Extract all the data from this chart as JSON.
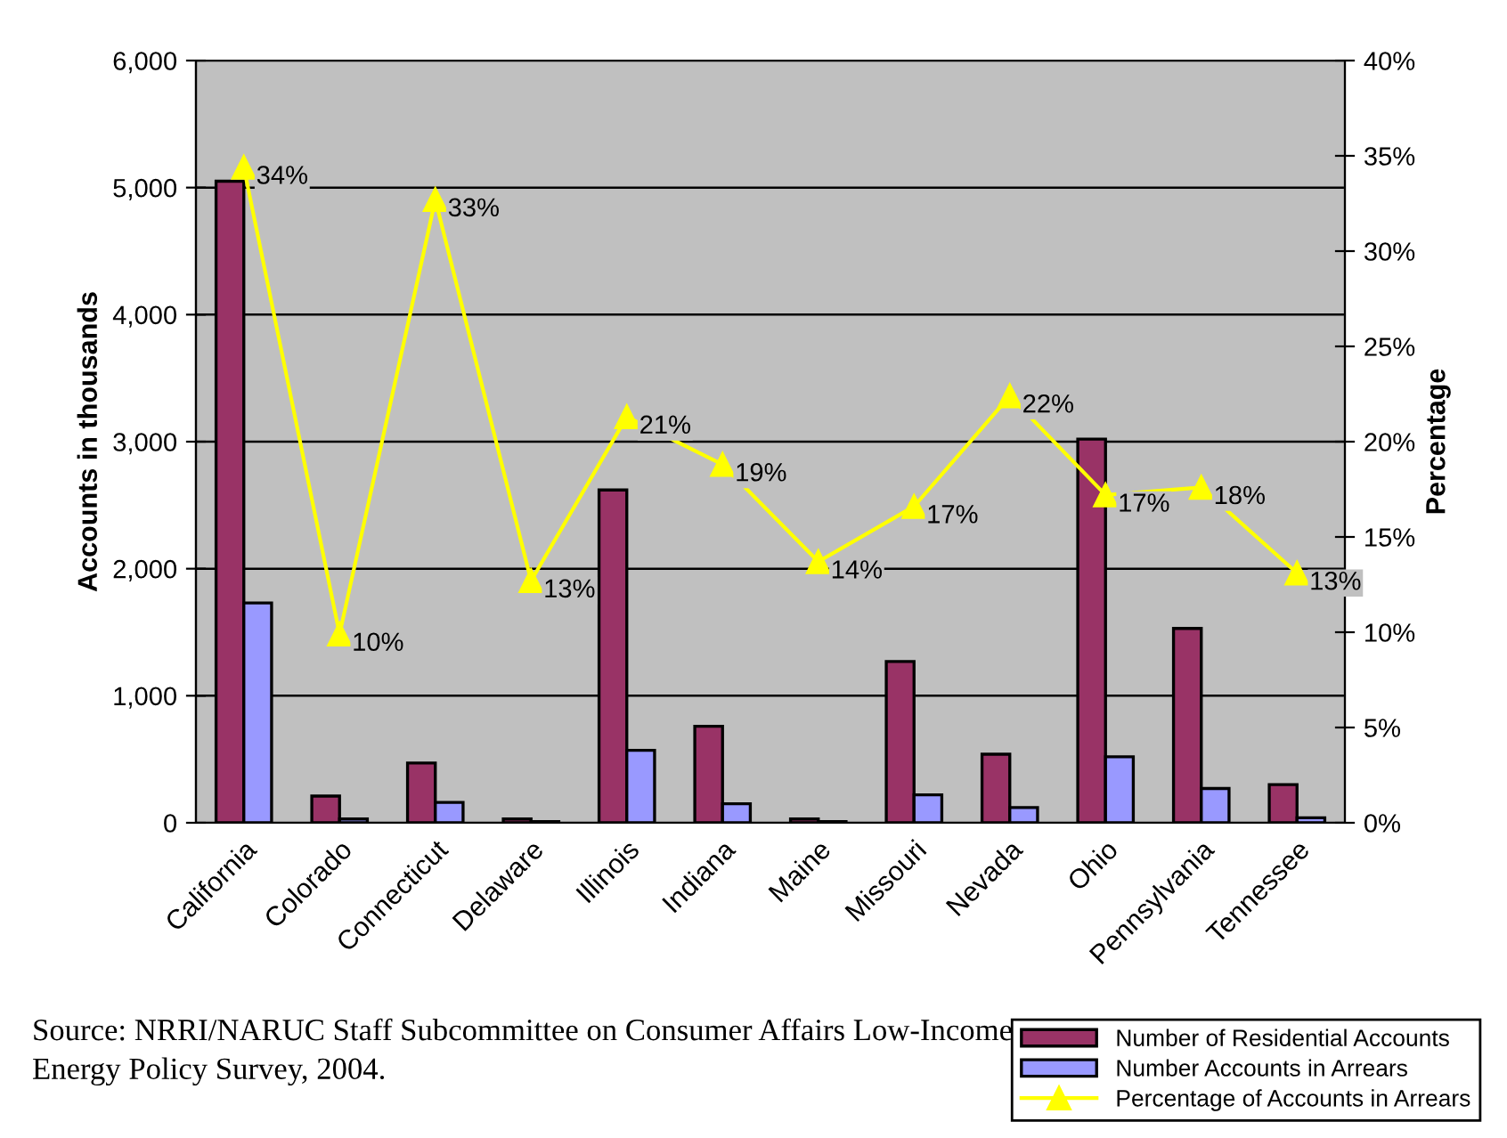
{
  "chart_data": {
    "type": "bar",
    "categories": [
      "California",
      "Colorado",
      "Connecticut",
      "Delaware",
      "Illinois",
      "Indiana",
      "Maine",
      "Missouri",
      "Nevada",
      "Ohio",
      "Pennsylvania",
      "Tennessee"
    ],
    "series": [
      {
        "name": "Number of Residential Accounts",
        "color": "#993366",
        "values": [
          5050,
          210,
          470,
          30,
          2620,
          760,
          30,
          1270,
          540,
          3020,
          1530,
          300
        ]
      },
      {
        "name": "Number Accounts in Arrears",
        "color": "#9999ff",
        "values": [
          1730,
          30,
          160,
          10,
          570,
          150,
          10,
          220,
          120,
          520,
          270,
          40
        ]
      },
      {
        "name": "Percentage of Accounts in Arrears",
        "type": "line",
        "axis": "y2",
        "color": "#ffff00",
        "marker": "triangle",
        "values": [
          34.4,
          9.9,
          32.7,
          12.7,
          21.3,
          18.8,
          13.7,
          16.6,
          22.4,
          17.2,
          17.6,
          13.1
        ],
        "value_labels": [
          "34%",
          "10%",
          "33%",
          "13%",
          "21%",
          "19%",
          "14%",
          "17%",
          "22%",
          "17%",
          "18%",
          "13%"
        ]
      }
    ],
    "ylabel": "Accounts in thousands",
    "y2label": "Percentage",
    "ylim": [
      0,
      6000
    ],
    "yticks": [
      {
        "value": 0,
        "label": "0"
      },
      {
        "value": 1000,
        "label": "1,000"
      },
      {
        "value": 2000,
        "label": "2,000"
      },
      {
        "value": 3000,
        "label": "3,000"
      },
      {
        "value": 4000,
        "label": "4,000"
      },
      {
        "value": 5000,
        "label": "5,000"
      },
      {
        "value": 6000,
        "label": "6,000"
      }
    ],
    "y2lim": [
      0,
      40
    ],
    "y2ticks": [
      {
        "value": 0,
        "label": "0%"
      },
      {
        "value": 5,
        "label": "5%"
      },
      {
        "value": 10,
        "label": "10%"
      },
      {
        "value": 15,
        "label": "15%"
      },
      {
        "value": 20,
        "label": "20%"
      },
      {
        "value": 25,
        "label": "25%"
      },
      {
        "value": 30,
        "label": "30%"
      },
      {
        "value": 35,
        "label": "35%"
      },
      {
        "value": 40,
        "label": "40%"
      }
    ],
    "grid": "y",
    "legend": "bottom right",
    "annotations": [
      "Source: NRRI/NARUC Staff Subcommittee on Consumer Affairs Low-Income\nEnergy Policy Survey, 2004."
    ]
  }
}
